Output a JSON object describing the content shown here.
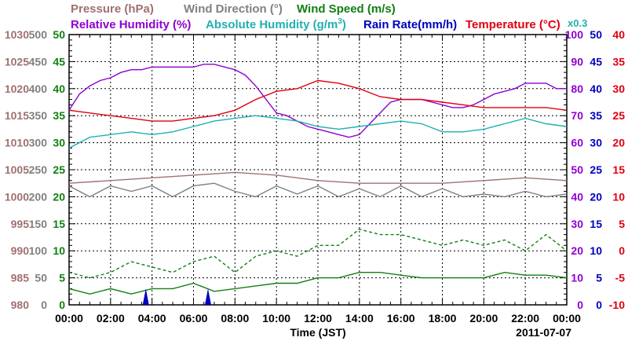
{
  "chart_data": {
    "type": "line",
    "date_label": "2011-07-07",
    "xlabel": "Time (JST)",
    "x_ticks": [
      "00:00",
      "02:00",
      "04:00",
      "06:00",
      "08:00",
      "10:00",
      "12:00",
      "14:00",
      "16:00",
      "18:00",
      "20:00",
      "22:00",
      "00:00"
    ],
    "legend": [
      {
        "text": "Pressure (hPa)",
        "color": "#a07070"
      },
      {
        "text": "Wind Direction (°)",
        "color": "#808080"
      },
      {
        "text": "Wind Speed (m/s)",
        "color": "#108010"
      },
      {
        "text": "Relative Humidity (%)",
        "color": "#9000d0"
      },
      {
        "text": "Absolute Humidity (g/m",
        "sup": "3",
        "tail": ")",
        "color": "#20b0b0"
      },
      {
        "text": "Rain Rate(mm/h)",
        "color": "#0000c0"
      },
      {
        "text": "Temperature (°C)",
        "color": "#e00010"
      }
    ],
    "axis_note": "x0.3",
    "axes": {
      "pressure": {
        "ticks": [
          "1030",
          "1025",
          "1020",
          "1015",
          "1010",
          "1005",
          "1000",
          "995",
          "990",
          "985",
          "980"
        ],
        "range": [
          980,
          1030
        ],
        "color": "#a07070"
      },
      "wind_direction": {
        "ticks": [
          "500",
          "450",
          "400",
          "350",
          "300",
          "250",
          "200",
          "150",
          "100",
          "50",
          "0"
        ],
        "range": [
          0,
          500
        ],
        "color": "#808080"
      },
      "wind_speed": {
        "ticks": [
          "50",
          "45",
          "40",
          "35",
          "30",
          "25",
          "20",
          "15",
          "10",
          "5",
          "0"
        ],
        "range": [
          0,
          50
        ],
        "color": "#108010"
      },
      "relative_humidity": {
        "ticks": [
          "100",
          "90",
          "80",
          "70",
          "60",
          "50",
          "40",
          "30",
          "20",
          "10",
          "0"
        ],
        "range": [
          0,
          100
        ],
        "color": "#9000d0"
      },
      "rain_rate": {
        "ticks": [
          "50",
          "45",
          "40",
          "35",
          "30",
          "25",
          "20",
          "15",
          "10",
          "5",
          "0"
        ],
        "range": [
          0,
          50
        ],
        "color": "#0000c0"
      },
      "temperature": {
        "ticks": [
          "40",
          "35",
          "30",
          "25",
          "20",
          "15",
          "10",
          "5",
          "0",
          "-5",
          "-10"
        ],
        "range": [
          -10,
          40
        ],
        "color": "#e00010"
      }
    },
    "series": [
      {
        "name": "Relative Humidity (%)",
        "axis": "relative_humidity",
        "color": "#9000d0",
        "x": [
          0,
          0.5,
          1,
          1.5,
          2,
          2.5,
          3,
          3.5,
          4,
          4.5,
          5,
          5.5,
          6,
          6.5,
          7,
          7.5,
          8,
          8.5,
          9,
          9.5,
          10,
          10.5,
          11,
          11.5,
          12,
          12.5,
          13,
          13.5,
          14,
          14.5,
          15,
          15.5,
          16,
          16.5,
          17,
          17.5,
          18,
          18.5,
          19,
          19.5,
          20,
          20.5,
          21,
          21.5,
          22,
          22.5,
          23,
          23.5,
          24
        ],
        "y": [
          72,
          78,
          81,
          83,
          84,
          86,
          87,
          87,
          88,
          88,
          88,
          88,
          88,
          89,
          89,
          88,
          87,
          85,
          81,
          76,
          71,
          70,
          68,
          66,
          65,
          64,
          63,
          62,
          63,
          67,
          71,
          75,
          76,
          76,
          76,
          75,
          74,
          73,
          73,
          74,
          76,
          78,
          79,
          80,
          82,
          82,
          82,
          80,
          80
        ]
      },
      {
        "name": "Temperature (°C)",
        "axis": "temperature",
        "color": "#e00010",
        "x": [
          0,
          1,
          2,
          3,
          4,
          5,
          6,
          7,
          8,
          9,
          10,
          11,
          12,
          13,
          14,
          15,
          16,
          17,
          18,
          19,
          20,
          21,
          22,
          23,
          24
        ],
        "y": [
          26,
          25.5,
          25,
          24.5,
          24,
          24,
          24.5,
          25,
          26,
          28,
          29.5,
          30,
          31.5,
          31,
          30,
          28.5,
          28,
          28,
          27.5,
          27,
          26.5,
          26.5,
          26.5,
          26.5,
          26
        ]
      },
      {
        "name": "Absolute Humidity (g/m3)",
        "axis": "absolute_humidity_scaled",
        "color": "#20b0b0",
        "x": [
          0,
          1,
          2,
          3,
          4,
          5,
          6,
          7,
          8,
          9,
          10,
          11,
          12,
          13,
          14,
          15,
          16,
          17,
          18,
          19,
          20,
          21,
          22,
          23,
          24
        ],
        "y": [
          29,
          31,
          31.5,
          32,
          31.5,
          32,
          33,
          34,
          34.5,
          35,
          34.5,
          34,
          33,
          32.5,
          33,
          33.5,
          34,
          33.5,
          32,
          32,
          32.5,
          33.5,
          34.5,
          33.5,
          33
        ]
      },
      {
        "name": "Pressure (hPa)",
        "axis": "pressure",
        "color": "#a07070",
        "x": [
          0,
          2,
          4,
          6,
          8,
          10,
          12,
          14,
          16,
          18,
          20,
          22,
          24
        ],
        "y": [
          1002.5,
          1003,
          1003.5,
          1004,
          1004.5,
          1004,
          1003,
          1002.5,
          1002.5,
          1002.5,
          1003,
          1003.5,
          1003
        ]
      },
      {
        "name": "Wind Direction (°)",
        "axis": "wind_direction",
        "color": "#808080",
        "x": [
          0,
          1,
          2,
          3,
          4,
          5,
          6,
          7,
          8,
          9,
          10,
          11,
          12,
          13,
          14,
          15,
          16,
          17,
          18,
          19,
          20,
          21,
          22,
          23,
          24
        ],
        "y": [
          220,
          200,
          220,
          210,
          220,
          200,
          220,
          225,
          210,
          200,
          220,
          205,
          220,
          200,
          215,
          200,
          220,
          200,
          215,
          200,
          205,
          200,
          210,
          200,
          205
        ]
      },
      {
        "name": "Wind Speed (m/s) - max",
        "axis": "wind_speed",
        "color": "#108010",
        "dashed": true,
        "x": [
          0,
          1,
          2,
          3,
          4,
          5,
          6,
          7,
          8,
          9,
          10,
          11,
          12,
          13,
          14,
          15,
          16,
          17,
          18,
          19,
          20,
          21,
          22,
          23,
          24
        ],
        "y": [
          6,
          5,
          6,
          8,
          7,
          6,
          8,
          9,
          6,
          9,
          10,
          9,
          11,
          11,
          14,
          13,
          13,
          12,
          11,
          12,
          11,
          12,
          10,
          13,
          10
        ]
      },
      {
        "name": "Wind Speed (m/s) - mean",
        "axis": "wind_speed",
        "color": "#108010",
        "x": [
          0,
          1,
          2,
          3,
          4,
          5,
          6,
          7,
          8,
          9,
          10,
          11,
          12,
          13,
          14,
          15,
          16,
          17,
          18,
          19,
          20,
          21,
          22,
          23,
          24
        ],
        "y": [
          3,
          2,
          3,
          2,
          3,
          3,
          4,
          2.5,
          3,
          3.5,
          4,
          4,
          5,
          5,
          6,
          6,
          5.5,
          5,
          5,
          5,
          5,
          6,
          5.5,
          5.5,
          5
        ]
      },
      {
        "name": "Rain Rate(mm/h)",
        "axis": "rain_rate",
        "color": "#0000c0",
        "type": "bar",
        "x": [
          3.7,
          6.7
        ],
        "y": [
          3,
          3
        ]
      }
    ]
  }
}
